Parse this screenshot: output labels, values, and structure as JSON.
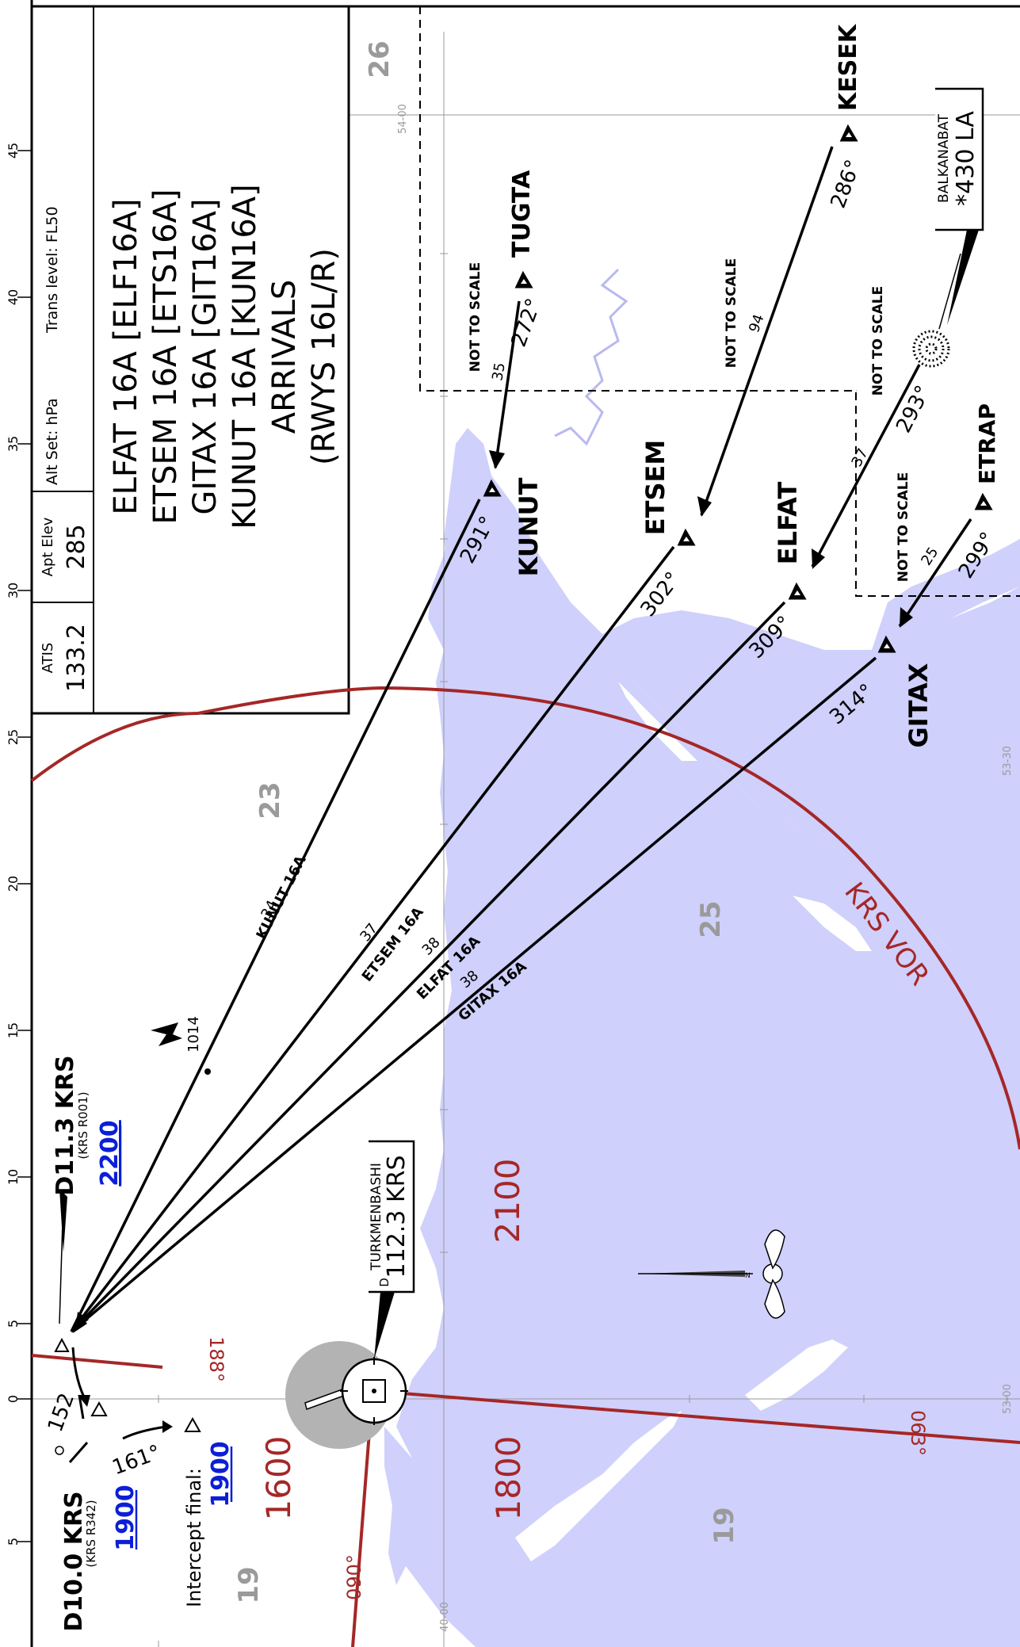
{
  "header": {
    "atis_label": "ATIS",
    "atis_freq": "133.2",
    "apt_elev_label": "Apt Elev",
    "apt_elev": "285",
    "alt_set": "Alt Set: hPa",
    "trans_level": "Trans level: FL50"
  },
  "title": {
    "line1": "ELFAT 16A [ELF16A]",
    "line2": "ETSEM 16A [ETS16A]",
    "line3": "GITAX 16A [GIT16A]",
    "line4": "KUNUT 16A [KUN16A]",
    "line5": "ARRIVALS",
    "line6": "(RWYS 16L/R)"
  },
  "scale": {
    "ticks": [
      "45",
      "40",
      "35",
      "30",
      "25",
      "20",
      "15",
      "10",
      "5",
      "0",
      "5"
    ]
  },
  "grid": {
    "lat1": "54-00",
    "lat2": "53-30",
    "lat3": "53-00",
    "lon1": "40-00"
  },
  "msa": {
    "sector_1": "26",
    "sector_2": "23",
    "sector_3": "25",
    "sector_4": "19",
    "sector_5": "19"
  },
  "fixes": {
    "tugta": "TUGTA",
    "kesek": "KESEK",
    "kunut": "KUNUT",
    "etsem": "ETSEM",
    "elfat": "ELFAT",
    "gitax": "GITAX",
    "etrap": "ETRAP"
  },
  "bearings": {
    "tugta_272": "272°",
    "kesek_286": "286°",
    "balk_293": "293°",
    "etrap_299": "299°",
    "kunut_291": "291°",
    "etsem_302": "302°",
    "elfat_309": "309°",
    "gitax_314": "314°",
    "turn_161": "161°",
    "turn_152": "152"
  },
  "distances": {
    "d35": "35",
    "d94": "94",
    "d37": "37",
    "d25": "25",
    "kun34": "34",
    "ets37": "37",
    "elf38": "38",
    "git38": "38"
  },
  "routes": {
    "kunut": "KUNUT 16A",
    "etsem": "ETSEM 16A",
    "elfat": "ELFAT 16A",
    "gitax": "GITAX 16A"
  },
  "notes": {
    "not_to_scale_1": "NOT TO SCALE",
    "not_to_scale_2": "NOT TO SCALE",
    "not_to_scale_3": "NOT TO SCALE",
    "not_to_scale_4": "NOT TO SCALE"
  },
  "navaids": {
    "balkanabat_name": "BALKANABAT",
    "balkanabat_ident": "*430 LA",
    "turkmenbashi_name": "TURKMENBASHI",
    "turkmenbashi_d": "D",
    "turkmenbashi_freq": "112.3 KRS",
    "krs_vor": "KRS VOR"
  },
  "waypoints": {
    "d113": "D11.3 KRS",
    "d113_sub": "(KRS R001)",
    "d113_alt": "2200",
    "d100": "D10.0 KRS",
    "d100_sub": "(KRS R342)",
    "d100_alt": "1900",
    "intercept_label": "Intercept final:",
    "intercept_alt": "1900"
  },
  "altitudes": {
    "a1014": "1014",
    "a1600": "1600",
    "a1800": "1800",
    "a2100": "2100"
  },
  "radials": {
    "r188": "188°",
    "r063": "063°",
    "r090": "090°"
  },
  "colors": {
    "water": "#cfd0fb",
    "radial_red": "#a52727",
    "alt_blue": "#0b1fd6",
    "msa_gray": "#9a9a9a"
  }
}
